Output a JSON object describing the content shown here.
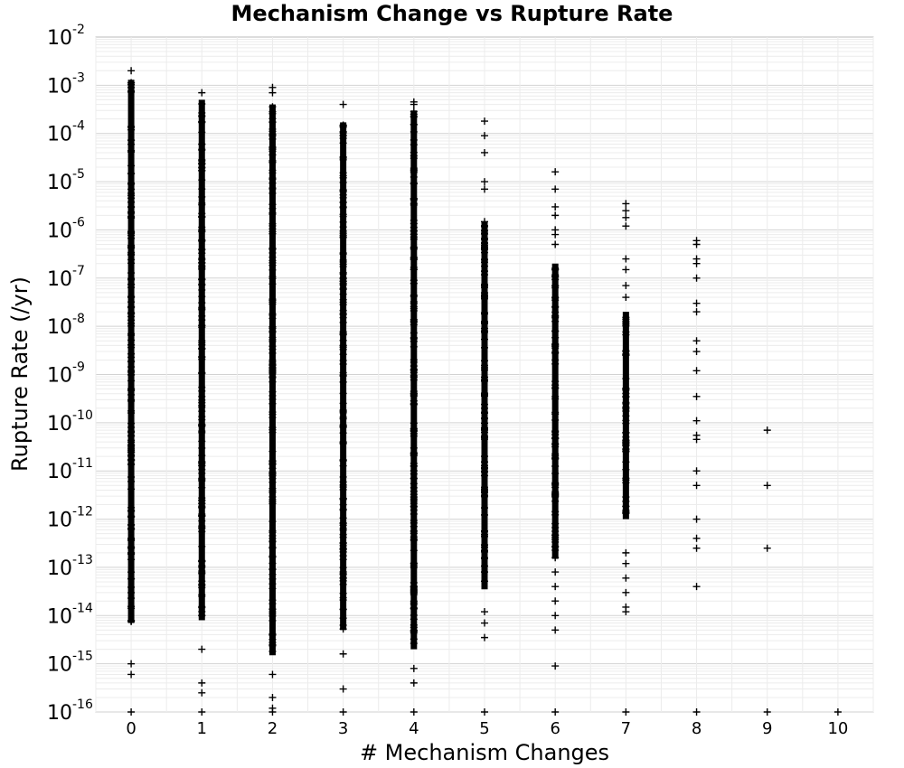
{
  "chart_data": {
    "type": "scatter",
    "title": "Mechanism Change vs Rupture Rate",
    "xlabel": "# Mechanism Changes",
    "ylabel": "Rupture Rate (/yr)",
    "xlim": [
      -0.5,
      10.5
    ],
    "ylim": [
      1e-16,
      0.01
    ],
    "y_scale": "log",
    "x_ticks": [
      "0",
      "1",
      "2",
      "3",
      "4",
      "5",
      "6",
      "7",
      "8",
      "9",
      "10"
    ],
    "y_ticks": [
      {
        "base": "10",
        "exp": "-2"
      },
      {
        "base": "10",
        "exp": "-3"
      },
      {
        "base": "10",
        "exp": "-4"
      },
      {
        "base": "10",
        "exp": "-5"
      },
      {
        "base": "10",
        "exp": "-6"
      },
      {
        "base": "10",
        "exp": "-7"
      },
      {
        "base": "10",
        "exp": "-8"
      },
      {
        "base": "10",
        "exp": "-9"
      },
      {
        "base": "10",
        "exp": "-10"
      },
      {
        "base": "10",
        "exp": "-11"
      },
      {
        "base": "10",
        "exp": "-12"
      },
      {
        "base": "10",
        "exp": "-13"
      },
      {
        "base": "10",
        "exp": "-14"
      },
      {
        "base": "10",
        "exp": "-15"
      },
      {
        "base": "10",
        "exp": "-16"
      }
    ],
    "grid": true,
    "marker": "plus",
    "series": [
      {
        "x": 0,
        "dense_range": [
          7e-15,
          0.0013
        ],
        "outliers": [
          0.002,
          1e-15,
          6e-16,
          1e-16
        ]
      },
      {
        "x": 1,
        "dense_range": [
          8e-15,
          0.0005
        ],
        "outliers": [
          0.0007,
          2e-15,
          4e-16,
          2.5e-16,
          1e-16
        ]
      },
      {
        "x": 2,
        "dense_range": [
          1.5e-15,
          0.0004
        ],
        "outliers": [
          0.0009,
          0.0007,
          6e-16,
          2e-16,
          1.2e-16,
          1e-16
        ]
      },
      {
        "x": 3,
        "dense_range": [
          5e-15,
          0.00017
        ],
        "outliers": [
          0.0004,
          1.6e-15,
          3e-16,
          1e-16
        ]
      },
      {
        "x": 4,
        "dense_range": [
          2e-15,
          0.0003
        ],
        "outliers": [
          0.00045,
          0.0004,
          0.00025,
          8e-16,
          4e-16,
          1e-16
        ]
      },
      {
        "x": 5,
        "dense_range": [
          3.5e-14,
          1.5e-06
        ],
        "outliers": [
          0.00018,
          9e-05,
          4e-05,
          1e-05,
          7e-06,
          1.2e-14,
          7e-15,
          3.5e-15,
          1e-16
        ]
      },
      {
        "x": 6,
        "dense_range": [
          1.5e-13,
          2e-07
        ],
        "outliers": [
          1.6e-05,
          7e-06,
          3e-06,
          2e-06,
          1e-06,
          8e-07,
          5e-07,
          8e-14,
          4e-14,
          2e-14,
          1e-14,
          5e-15,
          9e-16,
          1e-16
        ]
      },
      {
        "x": 7,
        "dense_range": [
          1e-12,
          2e-08
        ],
        "outliers": [
          3.5e-06,
          2.5e-06,
          1.8e-06,
          1.2e-06,
          2.5e-07,
          1.5e-07,
          7e-08,
          4e-08,
          2e-13,
          1.2e-13,
          6e-14,
          3e-14,
          1.5e-14,
          1.2e-14,
          1e-16
        ]
      },
      {
        "x": 8,
        "dense_range": null,
        "outliers": [
          6e-07,
          5e-07,
          2.5e-07,
          2e-07,
          1e-07,
          3e-08,
          2e-08,
          5e-09,
          3e-09,
          1.2e-09,
          3.5e-10,
          1.1e-10,
          5.5e-11,
          4.5e-11,
          1e-11,
          5e-12,
          1e-12,
          4e-13,
          2.5e-13,
          4e-14,
          1e-16
        ]
      },
      {
        "x": 9,
        "dense_range": null,
        "outliers": [
          7e-11,
          5e-12,
          2.5e-13,
          1e-16
        ]
      },
      {
        "x": 10,
        "dense_range": null,
        "outliers": [
          1e-16
        ]
      }
    ]
  }
}
